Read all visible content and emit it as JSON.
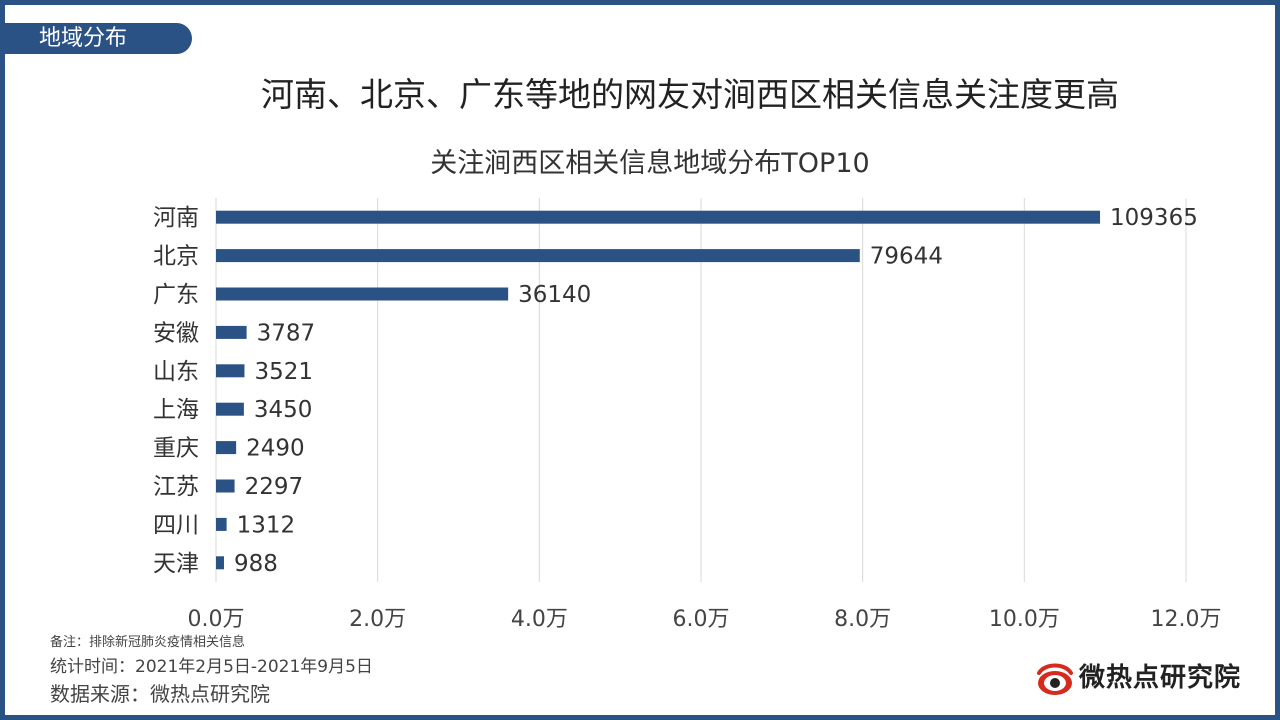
{
  "section_tab": "地域分布",
  "headline": "河南、北京、广东等地的网友对涧西区相关信息关注度更高",
  "notes": {
    "remark": "备注：排除新冠肺炎疫情相关信息",
    "period": "统计时间：2021年2月5日-2021年9月5日",
    "source": "数据来源：微热点研究院"
  },
  "brand": {
    "name": "微热点研究院",
    "logo_icon": "weibo-eye-icon"
  },
  "colors": {
    "bar": "#2b5285",
    "frame": "#2b5285",
    "grid": "#d9d9d9"
  },
  "chart_data": {
    "type": "bar",
    "orientation": "horizontal",
    "title": "关注涧西区相关信息地域分布TOP10",
    "categories": [
      "河南",
      "北京",
      "广东",
      "安徽",
      "山东",
      "上海",
      "重庆",
      "江苏",
      "四川",
      "天津"
    ],
    "values": [
      109365,
      79644,
      36140,
      3787,
      3521,
      3450,
      2490,
      2297,
      1312,
      988
    ],
    "data_labels": [
      "109365",
      "79644",
      "36140",
      "3787",
      "3521",
      "3450",
      "2490",
      "2297",
      "1312",
      "988"
    ],
    "xlim": [
      0,
      120000
    ],
    "x_ticks": [
      0,
      20000,
      40000,
      60000,
      80000,
      100000,
      120000
    ],
    "x_tick_labels": [
      "0.0万",
      "2.0万",
      "4.0万",
      "6.0万",
      "8.0万",
      "10.0万",
      "12.0万"
    ],
    "grid": "vertical",
    "legend": "none"
  }
}
